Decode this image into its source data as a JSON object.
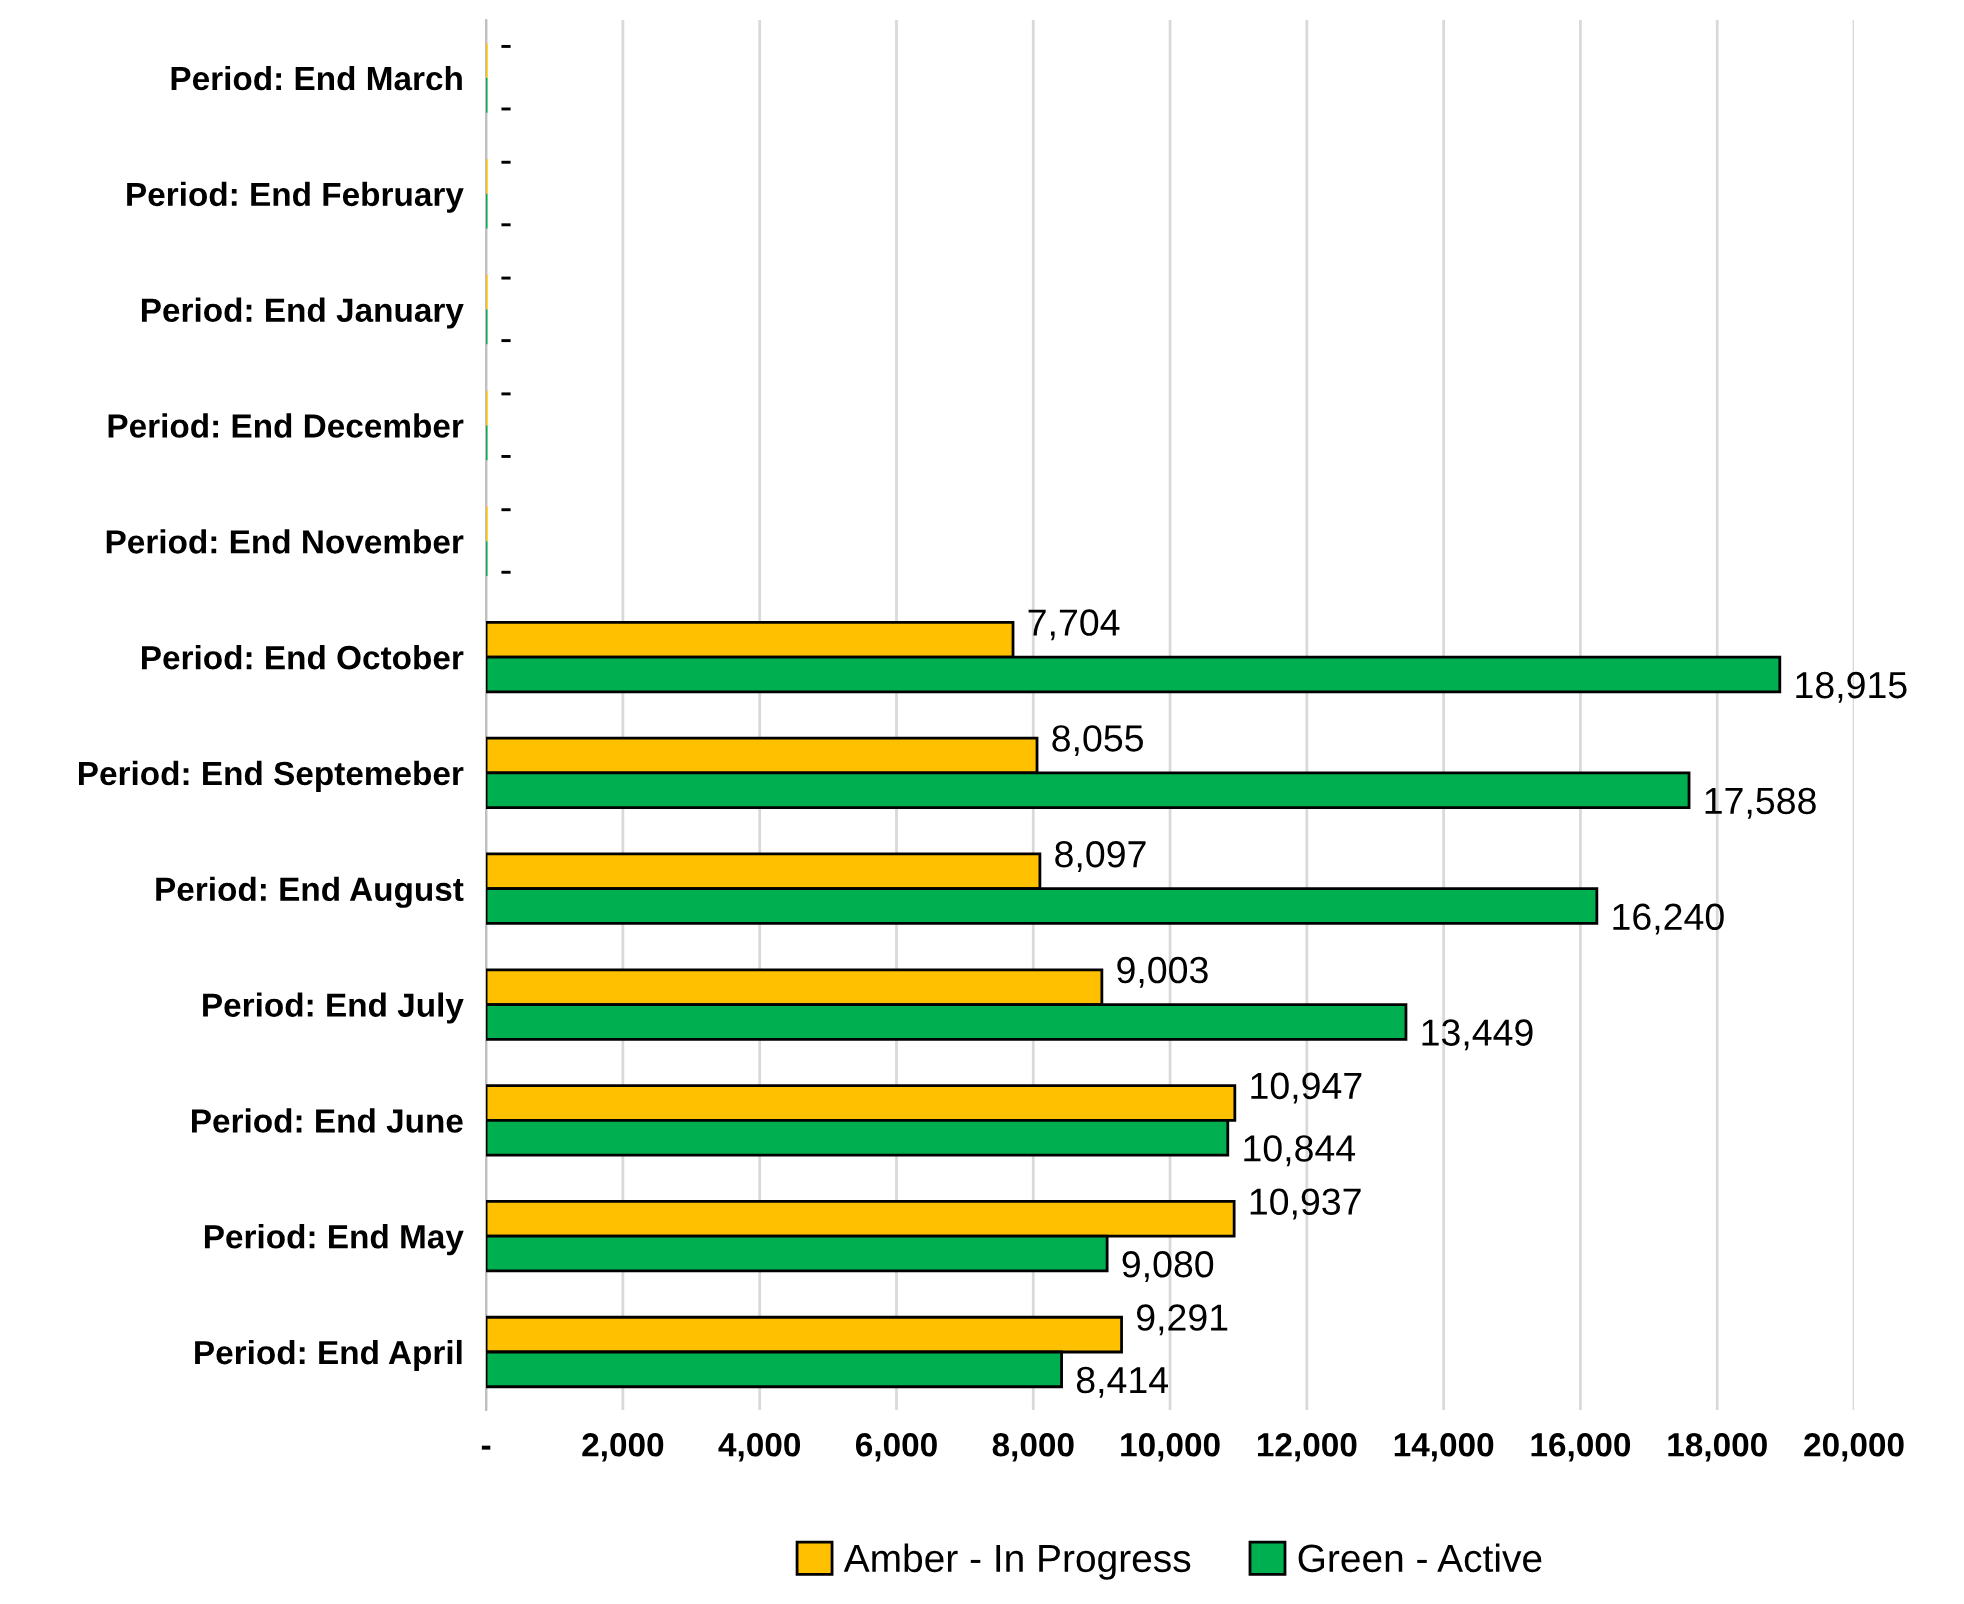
{
  "chart_data": {
    "type": "bar",
    "orientation": "horizontal",
    "categories": [
      "Period: End March",
      "Period: End February",
      "Period: End January",
      "Period: End December",
      "Period: End November",
      "Period: End October",
      "Period: End Septemeber",
      "Period: End August",
      "Period: End July",
      "Period: End June",
      "Period: End May",
      "Period: End April"
    ],
    "series": [
      {
        "name": "Amber - In Progress",
        "color": "#ffc000",
        "values": [
          0,
          0,
          0,
          0,
          0,
          7704,
          8055,
          8097,
          9003,
          10947,
          10937,
          9291
        ],
        "value_labels": [
          "-",
          "-",
          "-",
          "-",
          "-",
          "7,704",
          "8,055",
          "8,097",
          "9,003",
          "10,947",
          "10,937",
          "9,291"
        ]
      },
      {
        "name": "Green - Active",
        "color": "#00b050",
        "values": [
          0,
          0,
          0,
          0,
          0,
          18915,
          17588,
          16240,
          13449,
          10844,
          9080,
          8414
        ],
        "value_labels": [
          "-",
          "-",
          "-",
          "-",
          "-",
          "18,915",
          "17,588",
          "16,240",
          "13,449",
          "10,844",
          "9,080",
          "8,414"
        ]
      }
    ],
    "xlim": [
      0,
      20000
    ],
    "xticks": [
      {
        "value": 0,
        "label": "-"
      },
      {
        "value": 2000,
        "label": "2,000"
      },
      {
        "value": 4000,
        "label": "4,000"
      },
      {
        "value": 6000,
        "label": "6,000"
      },
      {
        "value": 8000,
        "label": "8,000"
      },
      {
        "value": 10000,
        "label": "10,000"
      },
      {
        "value": 12000,
        "label": "12,000"
      },
      {
        "value": 14000,
        "label": "14,000"
      },
      {
        "value": 16000,
        "label": "16,000"
      },
      {
        "value": 18000,
        "label": "18,000"
      },
      {
        "value": 20000,
        "label": "20,000"
      }
    ],
    "grid": "x",
    "legend": "bottom"
  }
}
